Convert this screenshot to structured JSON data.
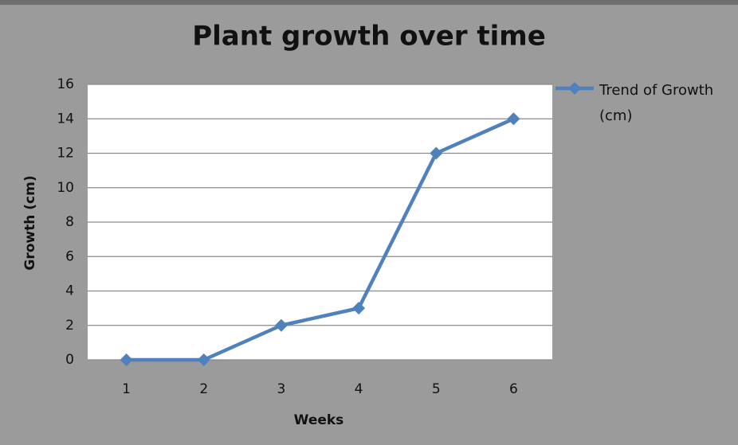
{
  "chart_data": {
    "type": "line",
    "title": "Plant growth over time",
    "x_label": "Weeks",
    "y_label": "Growth  (cm)",
    "categories": [
      "1",
      "2",
      "3",
      "4",
      "5",
      "6"
    ],
    "series": [
      {
        "name": "Trend of Growth (cm)",
        "color": "#4f81bd",
        "values": [
          0,
          0,
          2,
          3,
          12,
          14
        ]
      }
    ],
    "ylim": [
      0,
      16
    ],
    "yticks": [
      0,
      2,
      4,
      6,
      8,
      10,
      12,
      14,
      16
    ],
    "grid": true,
    "legend": "right"
  }
}
